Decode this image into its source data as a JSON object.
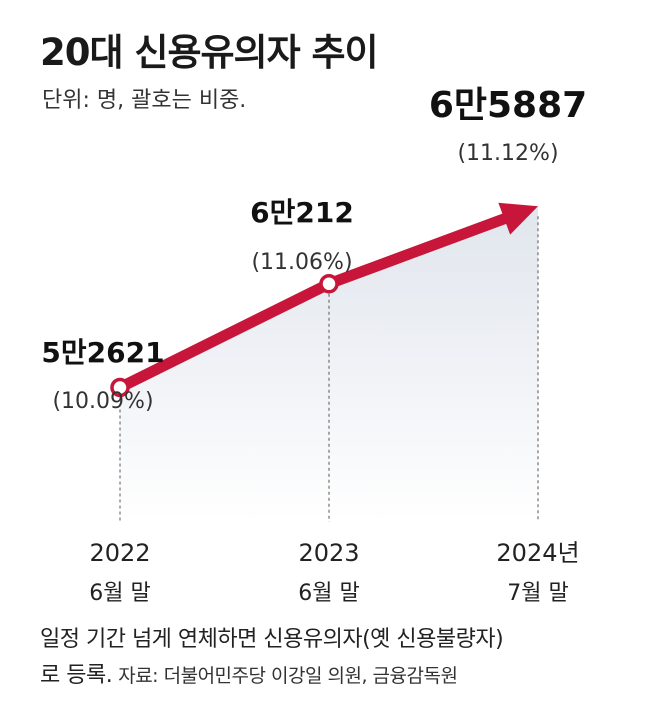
{
  "header": {
    "title": "20대 신용유의자 추이",
    "unit": "단위: 명, 괄호는 비중."
  },
  "chart_data": {
    "type": "line",
    "categories": [
      "2022\n6월 말",
      "2023\n6월 말",
      "2024년\n7월 말"
    ],
    "category_year": [
      "2022",
      "2023",
      "2024년"
    ],
    "category_month": [
      "6월 말",
      "6월 말",
      "7월 말"
    ],
    "values": [
      52621,
      60212,
      65887
    ],
    "value_labels": [
      "5만2621",
      "6만212",
      "6만5887"
    ],
    "share_labels": [
      "(10.09%)",
      "(11.06%)",
      "(11.12%)"
    ],
    "shares": [
      10.09,
      11.06,
      11.12
    ],
    "title": "20대 신용유의자 추이",
    "ylim": [
      40000,
      70000
    ],
    "grid": false,
    "line_color": "#c8163a",
    "area_color": "#e9edf3"
  },
  "footer": {
    "note_line1": "일정 기간 넘게 연체하면 신용유의자(옛 신용불량자)",
    "note_line2": "로 등록.",
    "source": "자료: 더불어민주당 이강일 의원, 금융감독원"
  }
}
